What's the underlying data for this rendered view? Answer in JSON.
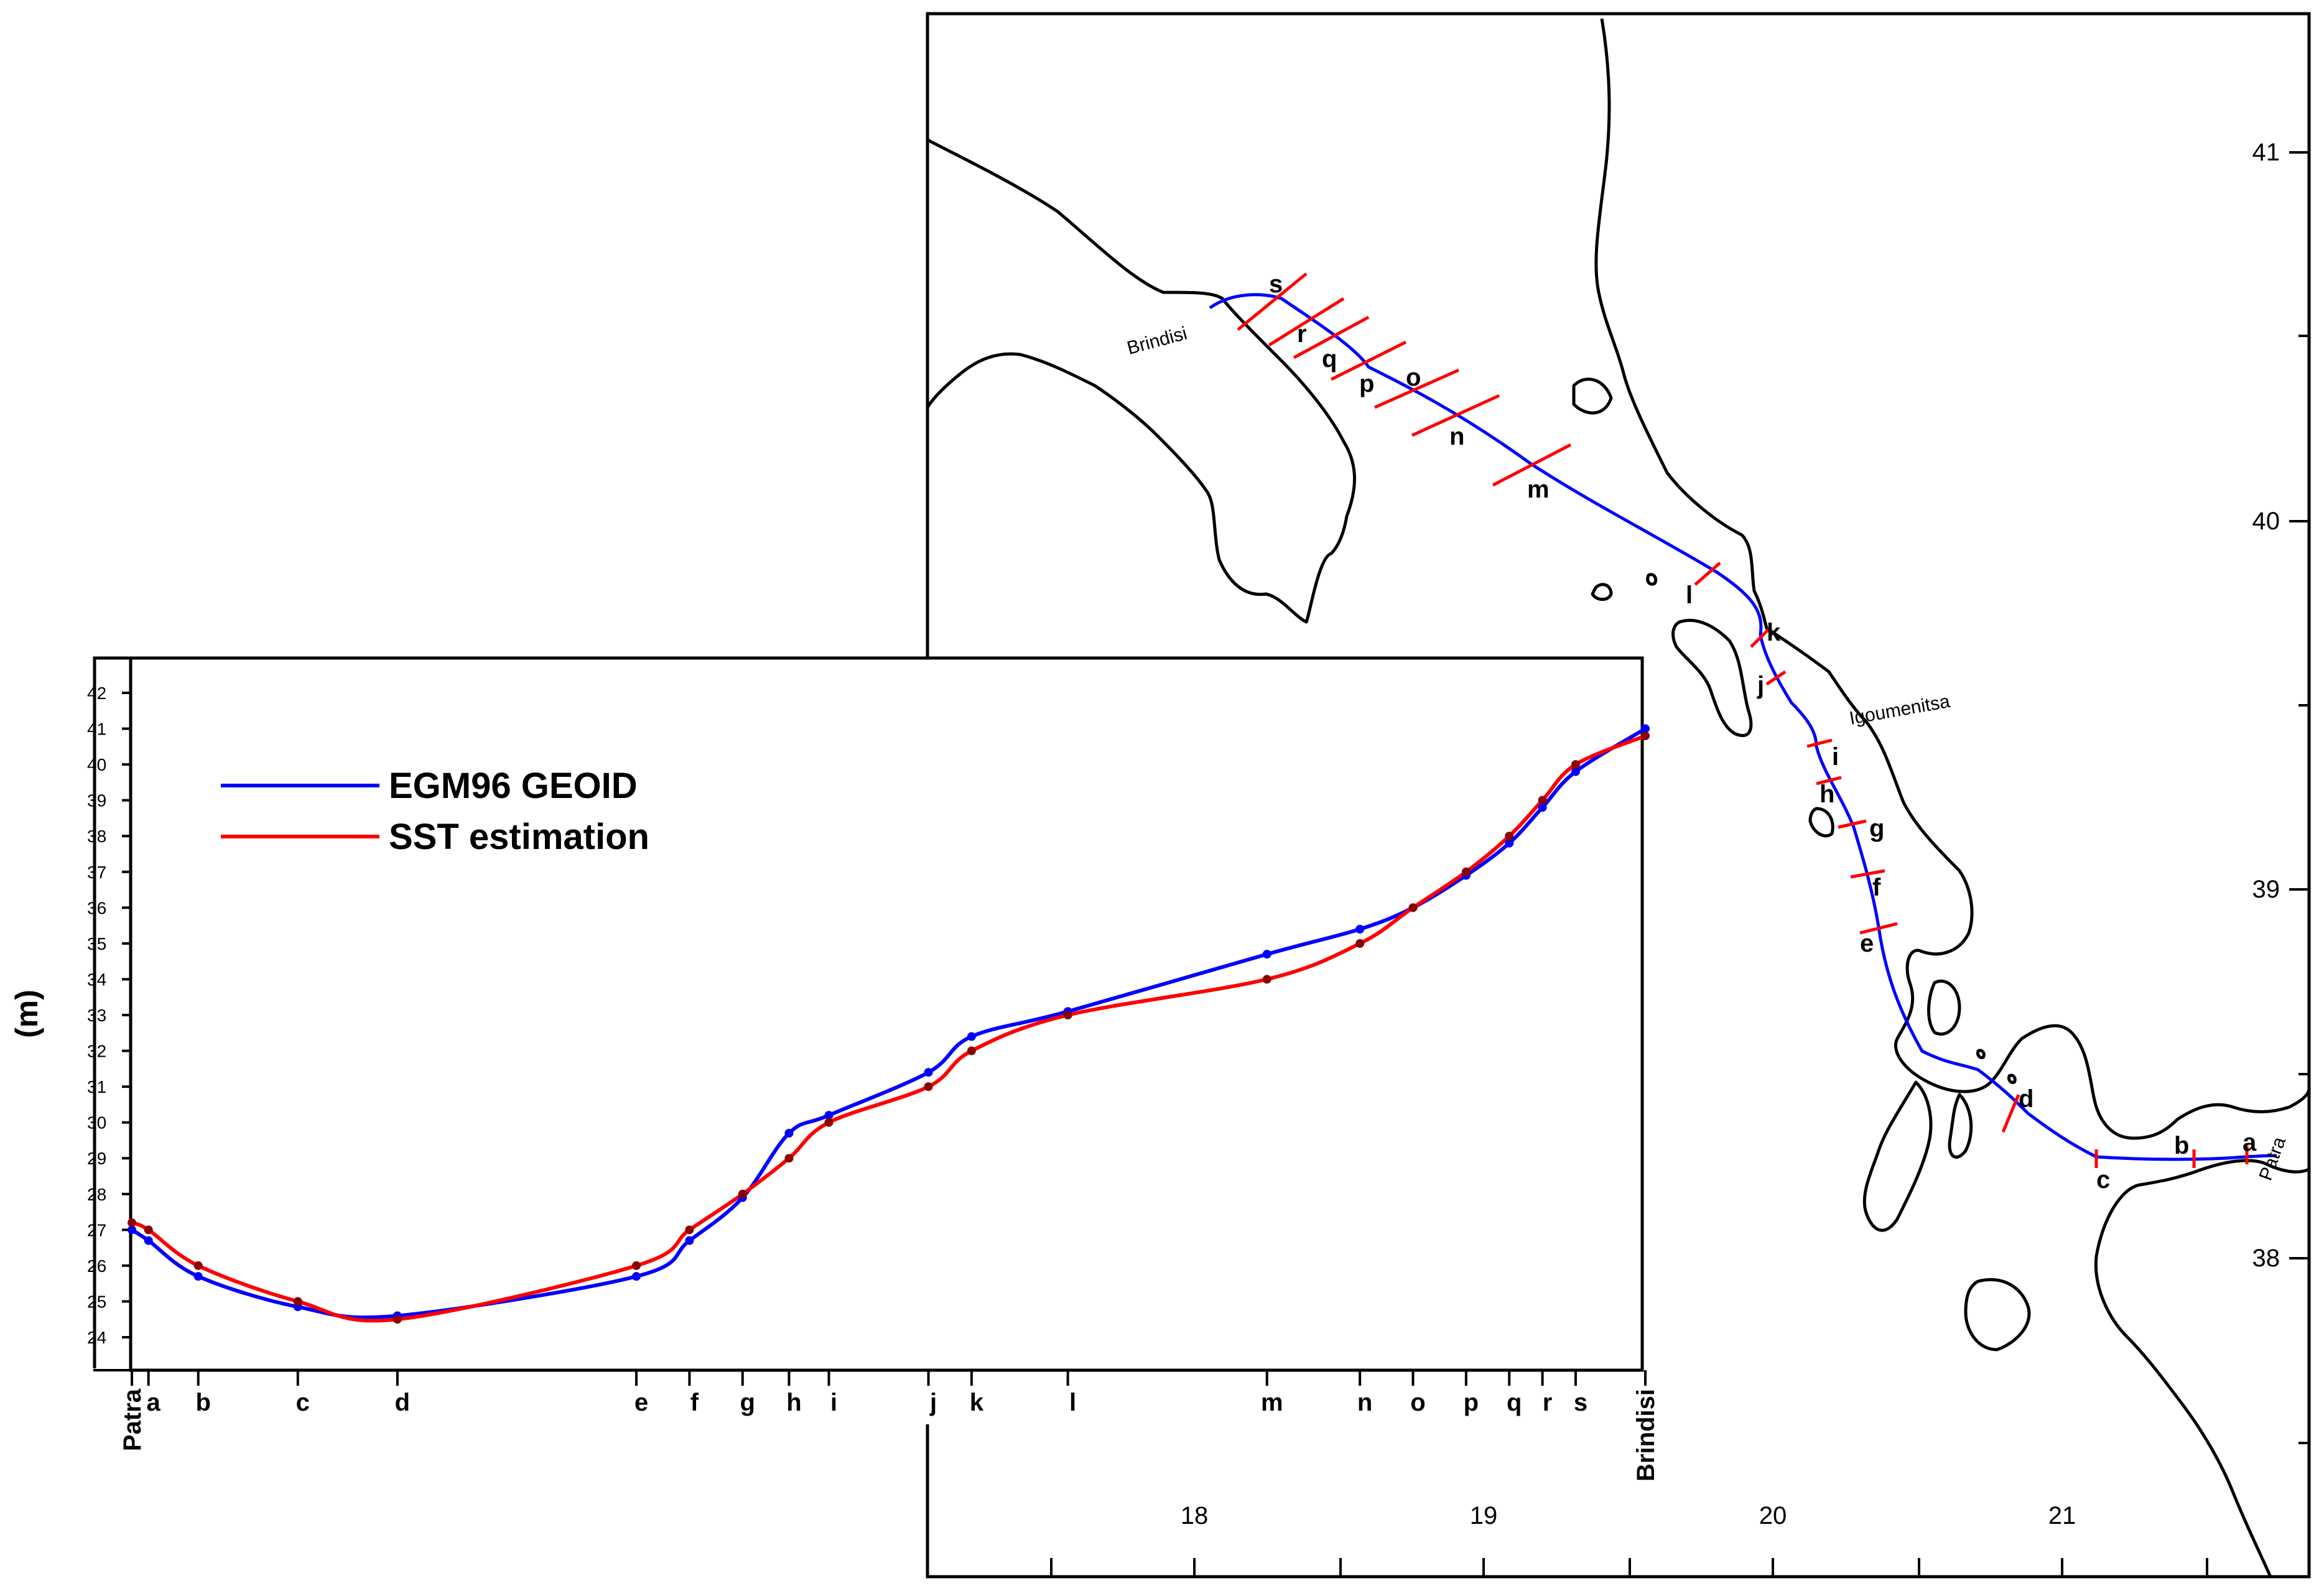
{
  "map": {
    "lat_ticks": [
      "41",
      "40",
      "39",
      "38"
    ],
    "lon_ticks": [
      "18",
      "19",
      "20",
      "21"
    ],
    "towns": {
      "brindisi": "Brindisi",
      "igoumenitsa": "Igoumenitsa",
      "patra": "Patra"
    },
    "route_color": "#0000ff",
    "crossing_color": "#ff0000",
    "coast_color": "#000000",
    "points": [
      "a",
      "b",
      "c",
      "d",
      "e",
      "f",
      "g",
      "h",
      "i",
      "j",
      "k",
      "l",
      "m",
      "n",
      "o",
      "p",
      "q",
      "r",
      "s"
    ]
  },
  "chart_data": {
    "type": "line",
    "title": "",
    "xlabel": "",
    "ylabel": "(m)",
    "ylim": [
      24,
      42
    ],
    "yticks": [
      24,
      25,
      26,
      27,
      28,
      29,
      30,
      31,
      32,
      33,
      34,
      35,
      36,
      37,
      38,
      39,
      40,
      41,
      42
    ],
    "categories": [
      "Patra",
      "a",
      "b",
      "c",
      "d",
      "e",
      "f",
      "g",
      "h",
      "i",
      "j",
      "k",
      "l",
      "m",
      "n",
      "o",
      "p",
      "q",
      "r",
      "s",
      "Brindisi"
    ],
    "x": [
      0,
      0.25,
      1.0,
      2.5,
      4.0,
      7.6,
      8.4,
      9.2,
      9.9,
      10.5,
      12.0,
      12.65,
      14.1,
      17.1,
      18.5,
      19.3,
      20.1,
      20.75,
      21.25,
      21.75,
      22.8
    ],
    "legend_position": "top-left",
    "series": [
      {
        "name": "EGM96 GEOID",
        "color": "#0000ff",
        "values": [
          27.0,
          26.7,
          25.7,
          24.85,
          24.6,
          25.7,
          26.7,
          27.9,
          29.7,
          30.2,
          31.4,
          32.4,
          33.1,
          34.7,
          35.4,
          36.0,
          36.9,
          37.8,
          38.8,
          39.8,
          41.0
        ]
      },
      {
        "name": "SST estimation",
        "color": "#ff0000",
        "values": [
          27.2,
          27.0,
          26.0,
          25.0,
          24.5,
          26.0,
          27.0,
          28.0,
          29.0,
          30.0,
          31.0,
          32.0,
          33.0,
          34.0,
          35.0,
          36.0,
          37.0,
          38.0,
          39.0,
          40.0,
          40.8
        ]
      }
    ]
  }
}
